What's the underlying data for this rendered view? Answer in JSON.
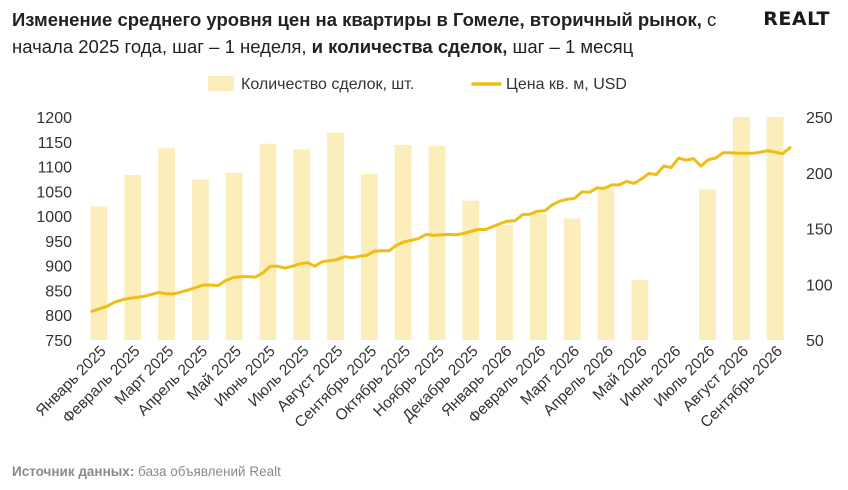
{
  "header": {
    "title_bold_1": "Изменение среднего уровня цен на квартиры в Гомеле, вторичный рынок,",
    "title_normal_1": " с начала 2025 года, шаг – 1 неделя,",
    "title_bold_2": " и количества сделок,",
    "title_normal_2": " шаг – 1 месяц",
    "logo": "REALT"
  },
  "footer": {
    "source_label": "Источник данных:",
    "source_text": " база объявлений Realt"
  },
  "colors": {
    "bars": "#fbeebb",
    "line": "#f0bd14",
    "text": "#333333"
  },
  "chart_data": {
    "type": "bar+line",
    "categories": [
      "Январь 2025",
      "Февраль 2025",
      "Март 2025",
      "Апрель 2025",
      "Май 2025",
      "Июнь 2025",
      "Июль 2025",
      "Август 2025",
      "Сентябрь 2025",
      "Октябрь 2025",
      "Ноябрь 2025",
      "Декабрь 2025",
      "Январь 2026",
      "Февраль 2026",
      "Март 2026",
      "Апрель 2026",
      "Май 2026",
      "Июнь 2026",
      "Июль 2026",
      "Август 2026",
      "Сентябрь 2026"
    ],
    "legend": {
      "position": "top",
      "bars_label": "Количество сделок, шт.",
      "line_label": "Цена кв. м, USD"
    },
    "y_left": {
      "min": 750,
      "max": 1200,
      "ticks": [
        750,
        800,
        850,
        900,
        950,
        1000,
        1050,
        1100,
        1150,
        1200
      ]
    },
    "y_right": {
      "min": 50,
      "max": 250,
      "ticks": [
        50,
        100,
        150,
        200,
        250
      ]
    },
    "grid": false,
    "bars": {
      "name": "Количество сделок, шт.",
      "axis": "right",
      "values": [
        170,
        198,
        222,
        194,
        200,
        226,
        221,
        236,
        199,
        225,
        224,
        175,
        153,
        163,
        159,
        186,
        104,
        185,
        250,
        250
      ]
    },
    "line": {
      "name": "Цена кв. м, USD",
      "axis": "left",
      "x_start": "Январь 2025",
      "x_end": "Сентябрь 2026",
      "values": [
        808,
        813,
        818,
        826,
        831,
        834,
        836,
        838,
        842,
        846,
        843,
        843,
        847,
        851,
        856,
        861,
        861,
        860,
        870,
        876,
        878,
        878,
        877,
        885,
        899,
        899,
        895,
        899,
        904,
        906,
        899,
        908,
        910,
        912,
        918,
        916,
        919,
        921,
        929,
        930,
        930,
        941,
        948,
        951,
        955,
        963,
        961,
        962,
        963,
        962,
        965,
        969,
        973,
        973,
        979,
        985,
        990,
        991,
        1003,
        1004,
        1010,
        1011,
        1023,
        1030,
        1034,
        1036,
        1049,
        1048,
        1057,
        1056,
        1063,
        1063,
        1070,
        1066,
        1075,
        1086,
        1084,
        1101,
        1098,
        1117,
        1113,
        1116,
        1101,
        1114,
        1117,
        1128,
        1128,
        1127,
        1127,
        1127,
        1129,
        1132,
        1129,
        1126,
        1138
      ]
    }
  }
}
